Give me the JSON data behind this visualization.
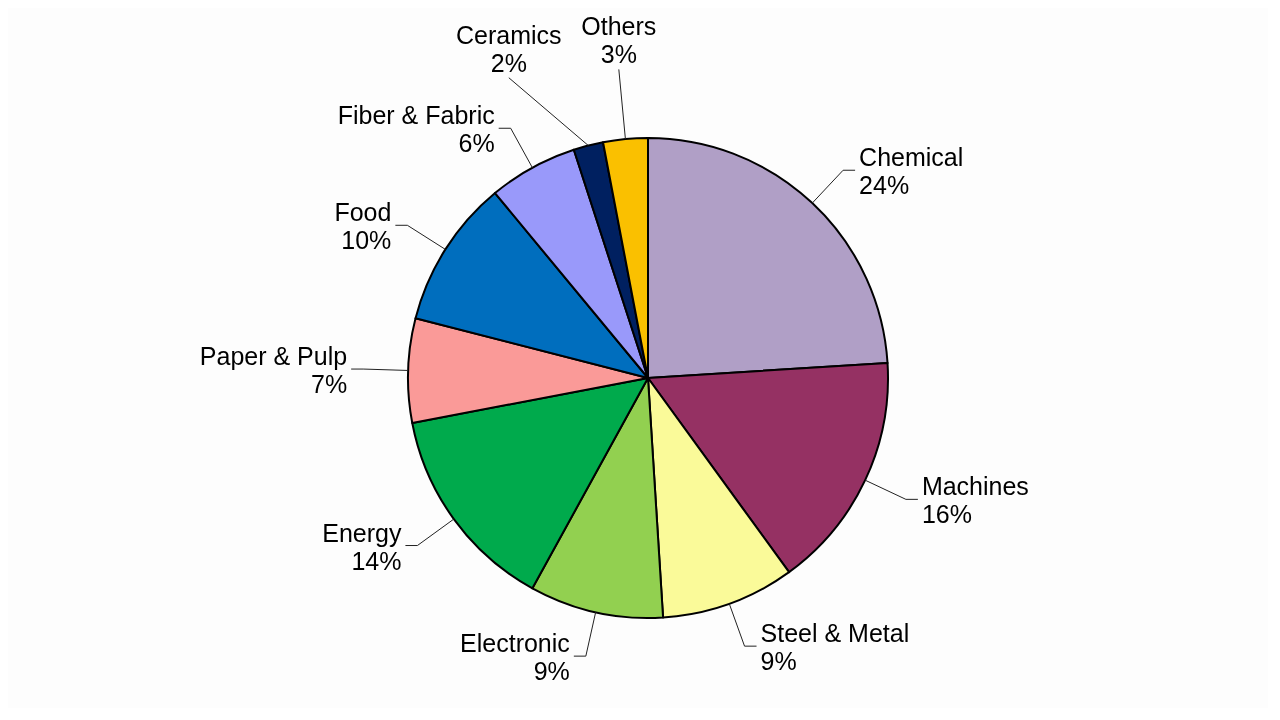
{
  "chart_data": {
    "type": "pie",
    "categories": [
      "Chemical",
      "Machines",
      "Steel & Metal",
      "Electronic",
      "Energy",
      "Paper & Pulp",
      "Food",
      "Fiber & Fabric",
      "Ceramics",
      "Others"
    ],
    "values": [
      24,
      16,
      9,
      9,
      14,
      7,
      10,
      6,
      2,
      3
    ],
    "value_labels": [
      "24%",
      "16%",
      "9%",
      "9%",
      "14%",
      "7%",
      "10%",
      "6%",
      "2%",
      "3%"
    ],
    "colors": [
      "#b09fc6",
      "#953163",
      "#fafa99",
      "#92d050",
      "#00aa4c",
      "#fa9a98",
      "#006ebe",
      "#9999fa",
      "#002060",
      "#fac000"
    ]
  }
}
